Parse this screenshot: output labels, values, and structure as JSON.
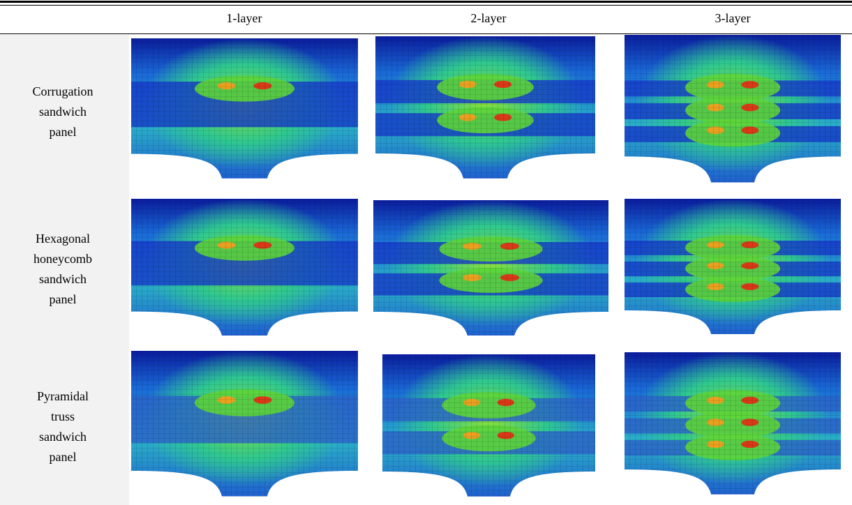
{
  "table": {
    "columns": [
      "1-layer",
      "2-layer",
      "3-layer"
    ],
    "rows": [
      {
        "label": [
          "Corrugation",
          "sandwich",
          "panel"
        ]
      },
      {
        "label": [
          "Hexagonal",
          "honeycomb",
          "sandwich",
          "panel"
        ]
      },
      {
        "label": [
          "Pyramidal",
          "truss",
          "sandwich",
          "panel"
        ]
      }
    ]
  }
}
